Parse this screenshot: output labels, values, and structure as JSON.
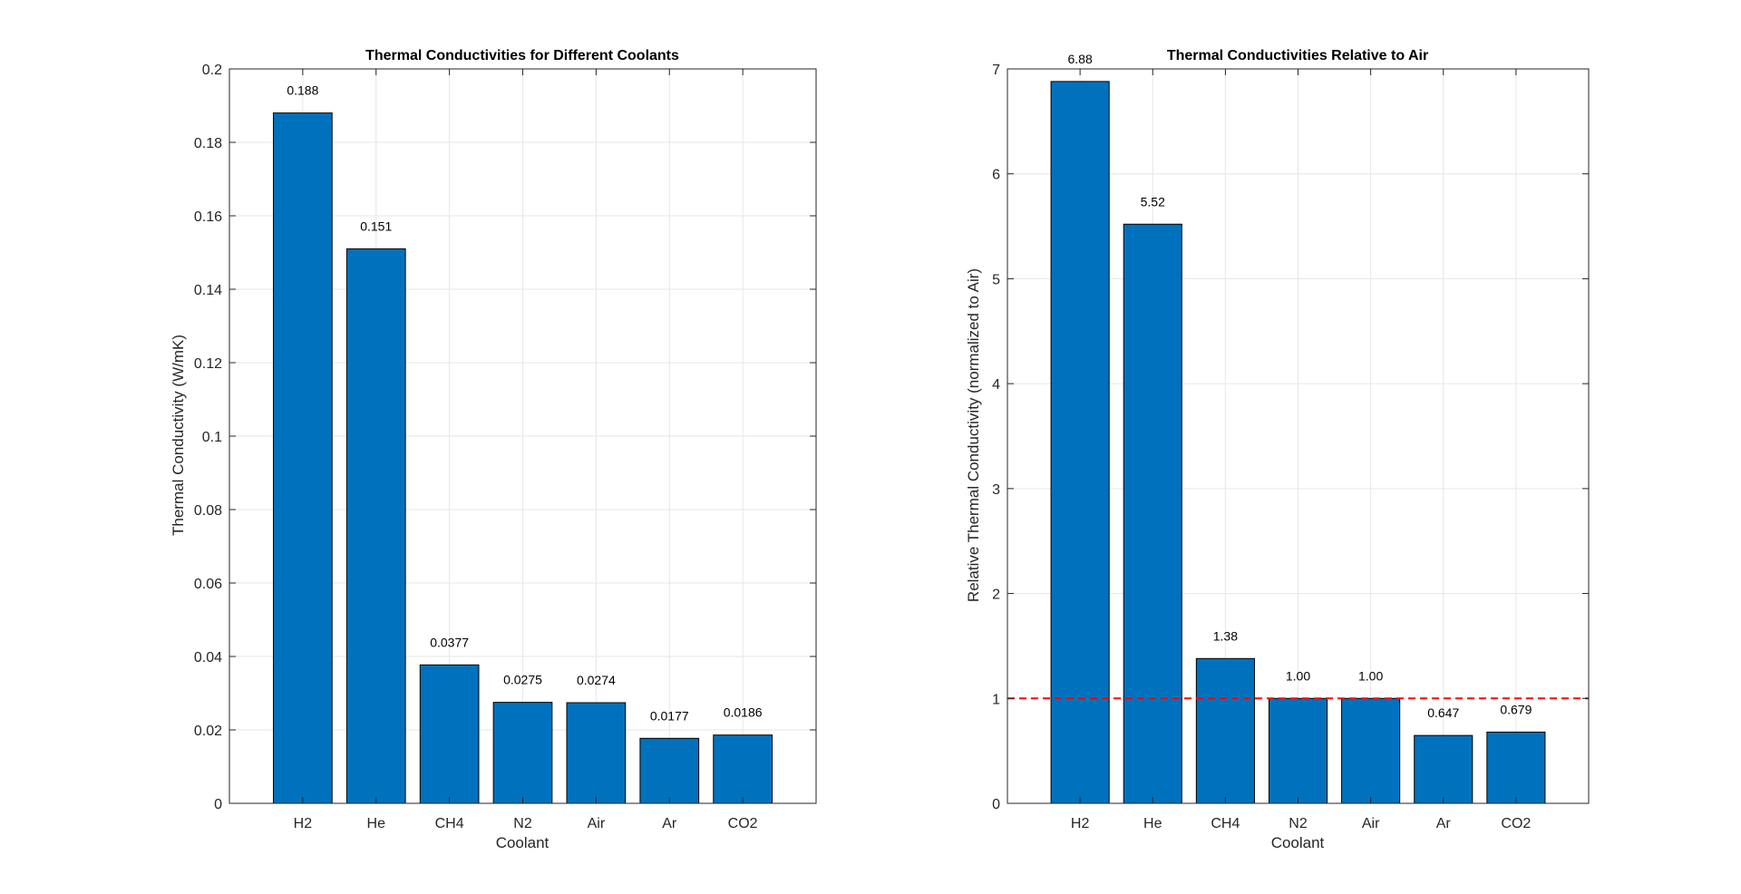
{
  "chart_data": [
    {
      "type": "bar",
      "title": "Thermal Conductivities for Different Coolants",
      "xlabel": "Coolant",
      "ylabel": "Thermal Conductivity (W/mK)",
      "categories": [
        "H2",
        "He",
        "CH4",
        "N2",
        "Air",
        "Ar",
        "CO2"
      ],
      "values": [
        0.188,
        0.151,
        0.0377,
        0.0275,
        0.0274,
        0.0177,
        0.0186
      ],
      "value_labels": [
        "0.188",
        "0.151",
        "0.0377",
        "0.0275",
        "0.0274",
        "0.0177",
        "0.0186"
      ],
      "ylim": [
        0,
        0.2
      ],
      "yticks": [
        0,
        0.02,
        0.04,
        0.06,
        0.08,
        0.1,
        0.12,
        0.14,
        0.16,
        0.18,
        0.2
      ],
      "ytick_labels": [
        "0",
        "0.02",
        "0.04",
        "0.06",
        "0.08",
        "0.1",
        "0.12",
        "0.14",
        "0.16",
        "0.18",
        "0.2"
      ],
      "grid": true,
      "bar_color": "#0072bd"
    },
    {
      "type": "bar",
      "title": "Thermal Conductivities Relative to Air",
      "xlabel": "Coolant",
      "ylabel": "Relative Thermal Conductivity (normalized to Air)",
      "categories": [
        "H2",
        "He",
        "CH4",
        "N2",
        "Air",
        "Ar",
        "CO2"
      ],
      "values": [
        6.88,
        5.52,
        1.38,
        1.0,
        1.0,
        0.647,
        0.679
      ],
      "value_labels": [
        "6.88",
        "5.52",
        "1.38",
        "1.00",
        "1.00",
        "0.647",
        "0.679"
      ],
      "ylim": [
        0,
        7
      ],
      "yticks": [
        0,
        1,
        2,
        3,
        4,
        5,
        6,
        7
      ],
      "ytick_labels": [
        "0",
        "1",
        "2",
        "3",
        "4",
        "5",
        "6",
        "7"
      ],
      "grid": true,
      "bar_color": "#0072bd",
      "reference_line": {
        "y": 1,
        "style": "dashed",
        "color": "#ff0000"
      }
    }
  ]
}
